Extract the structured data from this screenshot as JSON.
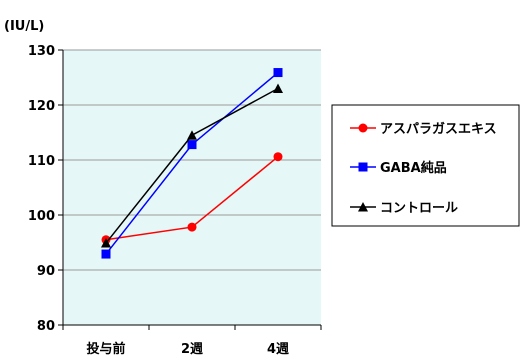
{
  "chart_data": {
    "type": "line",
    "unit_label": "(IU/L)",
    "categories": [
      "投与前",
      "2週",
      "4週"
    ],
    "ylim": [
      80,
      130
    ],
    "yticks": [
      80,
      90,
      100,
      110,
      120,
      130
    ],
    "grid": "horizontal",
    "legend_position": "right",
    "series": [
      {
        "name": "アスパラガスエキス",
        "values": [
          95.5,
          97.8,
          110.6
        ],
        "color": "#ff0000",
        "marker": "circle"
      },
      {
        "name": "GABA純品",
        "values": [
          92.9,
          112.8,
          125.9
        ],
        "color": "#0000ff",
        "marker": "square"
      },
      {
        "name": "コントロール",
        "values": [
          94.9,
          114.5,
          123.0
        ],
        "color": "#000000",
        "marker": "triangle"
      }
    ]
  },
  "colors": {
    "plot_background": "#e6f7f7",
    "gridline": "#9a9a9a"
  }
}
